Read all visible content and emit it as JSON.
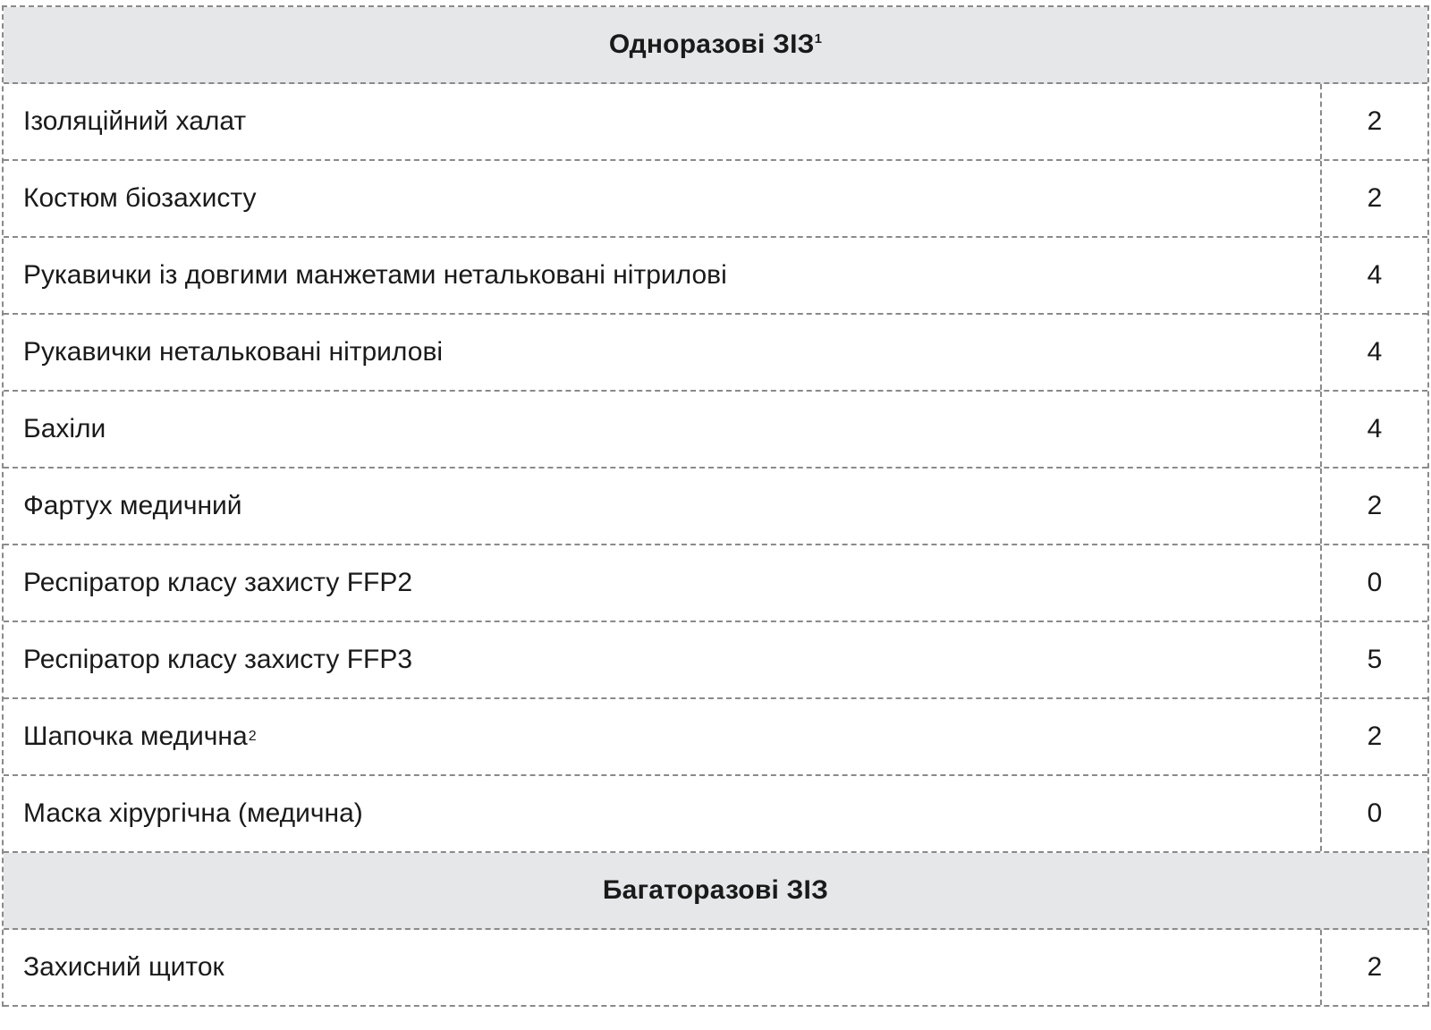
{
  "sections": [
    {
      "title": "Одноразові ЗІЗ",
      "title_sup": "1",
      "rows": [
        {
          "label": "Ізоляційний халат",
          "sup": "",
          "value": "2"
        },
        {
          "label": "Костюм біозахисту",
          "sup": "",
          "value": "2"
        },
        {
          "label": "Рукавички із довгими манжетами нетальковані нітрилові",
          "sup": "",
          "value": "4"
        },
        {
          "label": "Рукавички нетальковані нітрилові",
          "sup": "",
          "value": "4"
        },
        {
          "label": "Бахіли",
          "sup": "",
          "value": "4"
        },
        {
          "label": "Фартух медичний",
          "sup": "",
          "value": "2"
        },
        {
          "label": "Респіратор класу захисту FFP2",
          "sup": "",
          "value": "0"
        },
        {
          "label": "Респіратор класу захисту FFP3",
          "sup": "",
          "value": "5"
        },
        {
          "label": "Шапочка медична",
          "sup": "2",
          "value": "2"
        },
        {
          "label": "Маска хірургічна (медична)",
          "sup": "",
          "value": "0"
        }
      ]
    },
    {
      "title": "Багаторазові ЗІЗ",
      "title_sup": "",
      "rows": [
        {
          "label": "Захисний щиток",
          "sup": "",
          "value": "2"
        }
      ]
    }
  ]
}
